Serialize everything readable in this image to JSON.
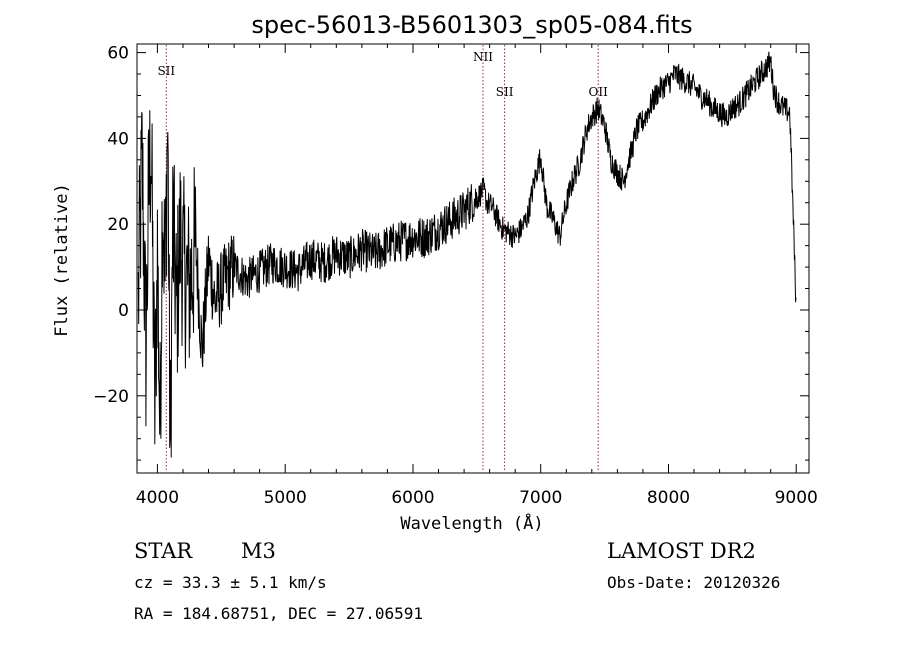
{
  "chart_data": {
    "type": "line",
    "title": "spec-56013-B5601303_sp05-084.fits",
    "xlabel": "Wavelength (Å)",
    "ylabel": "Flux (relative)",
    "xlim": [
      3840,
      9100
    ],
    "ylim": [
      -38,
      62
    ],
    "xticks": [
      4000,
      5000,
      6000,
      7000,
      8000,
      9000
    ],
    "yticks": [
      -20,
      0,
      20,
      40,
      60
    ],
    "grid": false,
    "series": [
      {
        "x": [
          3850,
          3880,
          3910,
          3930,
          3950,
          3980,
          4000,
          4020,
          4040,
          4060,
          4080,
          4100,
          4120,
          4150,
          4180,
          4200,
          4250,
          4300,
          4350,
          4400,
          4450,
          4500,
          4550,
          4600,
          4700,
          4800,
          4900,
          5000,
          5100,
          5200,
          5300,
          5400,
          5500,
          5600,
          5700,
          5800,
          5900,
          6000,
          6100,
          6200,
          6300,
          6350,
          6400,
          6450,
          6500,
          6550,
          6580,
          6620,
          6650,
          6700,
          6750,
          6800,
          6850,
          6900,
          6950,
          7000,
          7030,
          7050,
          7100,
          7150,
          7180,
          7220,
          7260,
          7300,
          7330,
          7360,
          7400,
          7450,
          7500,
          7550,
          7600,
          7650,
          7680,
          7720,
          7750,
          7800,
          7850,
          7900,
          7950,
          8000,
          8050,
          8100,
          8150,
          8200,
          8250,
          8300,
          8350,
          8400,
          8450,
          8500,
          8550,
          8600,
          8650,
          8700,
          8750,
          8800,
          8820,
          8850,
          8900,
          8950,
          9000
        ],
        "y": [
          2,
          35,
          -10,
          25,
          40,
          -25,
          15,
          -30,
          30,
          5,
          45,
          -35,
          20,
          0,
          18,
          10,
          5,
          15,
          -10,
          12,
          2,
          5,
          8,
          10,
          7,
          9,
          11,
          10,
          9,
          12,
          11,
          13,
          12,
          14,
          13,
          15,
          16,
          17,
          17,
          19,
          21,
          22,
          23,
          25,
          26,
          28,
          25,
          24,
          22,
          19,
          18,
          17,
          19,
          22,
          30,
          36,
          28,
          24,
          21,
          17,
          22,
          27,
          31,
          34,
          38,
          42,
          45,
          47,
          43,
          35,
          32,
          30,
          34,
          38,
          42,
          44,
          47,
          50,
          52,
          53,
          55,
          54,
          53,
          52,
          50,
          49,
          47,
          46,
          45,
          47,
          48,
          50,
          52,
          54,
          56,
          58,
          52,
          49,
          47,
          46,
          0
        ]
      }
    ],
    "annotations": [
      {
        "label": "SII",
        "x": 4069
      },
      {
        "label": "NII",
        "x": 6548
      },
      {
        "label": "SII",
        "x": 6717
      },
      {
        "label": "OII",
        "x": 7450
      }
    ]
  },
  "info": {
    "object_type": "STAR",
    "subclass": "M3",
    "survey": "LAMOST DR2",
    "cz": "cz = 33.3 ± 5.1 km/s",
    "obs_date": "Obs-Date: 20120326",
    "radec": "RA = 184.68751, DEC =  27.06591"
  },
  "colors": {
    "spectrum": "#000000",
    "line_markers": "#b22222"
  }
}
